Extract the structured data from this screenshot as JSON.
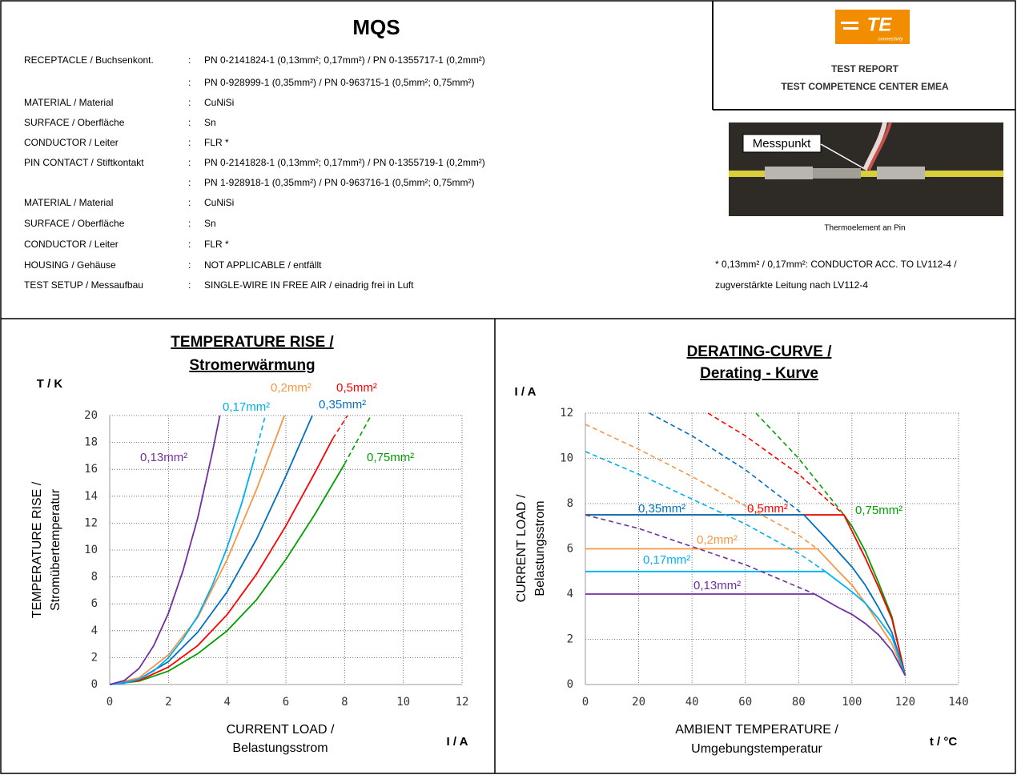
{
  "header": {
    "title": "MQS"
  },
  "report_box": {
    "logo_text": "TE",
    "logo_subtext": "connectivity",
    "line1": "TEST REPORT",
    "line2": "TEST COMPETENCE CENTER EMEA"
  },
  "photo": {
    "label": "Messpunkt",
    "caption": "Thermoelement an Pin"
  },
  "footnote": [
    "* 0,13mm² / 0,17mm²: CONDUCTOR ACC. TO LV112-4 /",
    "zugverstärkte Leitung nach LV112-4"
  ],
  "specifications": {
    "separator": ":",
    "rows": [
      {
        "label": "RECEPTACLE / Buchsenkont.",
        "values": [
          "PN 0-2141824-1 (0,13mm²; 0,17mm²) / PN 0-1355717-1 (0,2mm²)",
          "PN 0-928999-1 (0,35mm²) / PN 0-963715-1 (0,5mm²; 0,75mm²)"
        ]
      },
      {
        "label": "MATERIAL / Material",
        "values": [
          "CuNiSi"
        ]
      },
      {
        "label": "SURFACE / Oberfläche",
        "values": [
          "Sn"
        ]
      },
      {
        "label": "CONDUCTOR / Leiter",
        "values": [
          "FLR *"
        ]
      },
      {
        "label": "PIN CONTACT / Stiftkontakt",
        "values": [
          "PN 0-2141828-1 (0,13mm²; 0,17mm²) / PN 0-1355719-1 (0,2mm²)",
          "PN 1-928918-1 (0,35mm²) / PN 0-963716-1 (0,5mm²; 0,75mm²)"
        ]
      },
      {
        "label": "MATERIAL / Material",
        "values": [
          "CuNiSi"
        ]
      },
      {
        "label": "SURFACE / Oberfläche",
        "values": [
          "Sn"
        ]
      },
      {
        "label": "CONDUCTOR / Leiter",
        "values": [
          "FLR *"
        ]
      },
      {
        "label": "HOUSING / Gehäuse",
        "values": [
          "NOT APPLICABLE / entfällt"
        ]
      },
      {
        "label": "TEST SETUP / Messaufbau",
        "values": [
          "SINGLE-WIRE IN FREE AIR / einadrig frei in Luft"
        ]
      }
    ]
  },
  "chart_data": [
    {
      "type": "line",
      "title": [
        "TEMPERATURE RISE /",
        "Stromerwärmung"
      ],
      "y_unit": "T / K",
      "x_unit": "I / A",
      "y_label": [
        "TEMPERATURE RISE /",
        "Stromübertemperatur"
      ],
      "x_label": [
        "CURRENT LOAD /",
        "Belastungsstrom"
      ],
      "xlim": [
        0,
        12
      ],
      "ylim": [
        0,
        20
      ],
      "xticks": [
        0,
        2,
        4,
        6,
        8,
        10,
        12
      ],
      "yticks": [
        0,
        2,
        4,
        6,
        8,
        10,
        12,
        14,
        16,
        18,
        20
      ],
      "grid": true,
      "series": [
        {
          "name": "0,13mm²",
          "color": "#7030a0",
          "x": [
            0,
            0.5,
            1,
            1.5,
            2,
            2.5,
            3,
            3.5,
            3.75
          ],
          "values": [
            0,
            0.3,
            1.2,
            2.9,
            5.3,
            8.5,
            12.4,
            17.3,
            20
          ]
        },
        {
          "name": "0,17mm²",
          "color": "#00b0f0",
          "x": [
            0,
            0.5,
            1,
            1.5,
            2,
            2.5,
            3,
            3.5,
            4,
            4.5,
            4.9
          ],
          "values": [
            0,
            0.1,
            0.4,
            1.0,
            2.0,
            3.4,
            5.1,
            7.4,
            10.2,
            13.5,
            16.6
          ],
          "dash_x": [
            4.9,
            5.3
          ],
          "dash_values": [
            16.6,
            20
          ]
        },
        {
          "name": "0,2mm²",
          "color": "#f79646",
          "x": [
            0,
            1,
            2,
            3,
            4,
            5,
            5.95
          ],
          "values": [
            0,
            0.5,
            2.2,
            5.0,
            9.3,
            14.5,
            20
          ]
        },
        {
          "name": "0,35mm²",
          "color": "#0070c0",
          "x": [
            0,
            1,
            2,
            3,
            4,
            5,
            6,
            6.9
          ],
          "values": [
            0,
            0.4,
            1.7,
            3.9,
            6.9,
            10.8,
            15.5,
            20
          ]
        },
        {
          "name": "0,5mm²",
          "color": "#ff0000",
          "x": [
            0,
            1,
            2,
            3,
            4,
            5,
            6,
            7,
            7.6
          ],
          "values": [
            0,
            0.3,
            1.3,
            2.9,
            5.2,
            8.2,
            11.8,
            15.8,
            18.3
          ],
          "dash_x": [
            7.6,
            8.1
          ],
          "dash_values": [
            18.3,
            20
          ]
        },
        {
          "name": "0,75mm²",
          "color": "#00a000",
          "x": [
            0,
            1,
            2,
            3,
            4,
            5,
            6,
            7,
            8
          ],
          "values": [
            0,
            0.25,
            1.0,
            2.3,
            4.0,
            6.3,
            9.3,
            12.7,
            16.4
          ],
          "dash_x": [
            8,
            8.9
          ],
          "dash_values": [
            16.4,
            20
          ]
        }
      ]
    },
    {
      "type": "line",
      "title": [
        "DERATING-CURVE /",
        "Derating - Kurve"
      ],
      "y_unit": "I / A",
      "x_unit": "t / °C",
      "y_label": [
        "CURRENT LOAD /",
        "Belastungsstrom"
      ],
      "x_label": [
        "AMBIENT TEMPERATURE /",
        "Umgebungstemperatur"
      ],
      "xlim": [
        0,
        140
      ],
      "ylim": [
        0,
        12
      ],
      "xticks": [
        0,
        20,
        40,
        60,
        80,
        100,
        120,
        140
      ],
      "yticks": [
        0,
        2,
        4,
        6,
        8,
        10,
        12
      ],
      "grid": true,
      "series": [
        {
          "name": "0,13mm²",
          "color": "#7030a0",
          "x": [
            0,
            86,
            95,
            100,
            105,
            110,
            115,
            120
          ],
          "values": [
            4,
            4,
            3.4,
            3.1,
            2.7,
            2.2,
            1.5,
            0.4
          ],
          "dash_x": [
            0,
            20,
            40,
            60,
            80,
            86
          ],
          "dash_values": [
            7.5,
            6.9,
            6.1,
            5.3,
            4.3,
            4.0
          ]
        },
        {
          "name": "0,17mm²",
          "color": "#00b0f0",
          "x": [
            0,
            90,
            100,
            105,
            110,
            115,
            120
          ],
          "values": [
            5,
            5,
            4.1,
            3.6,
            2.9,
            2.1,
            0.4
          ],
          "dash_x": [
            0,
            20,
            40,
            60,
            80,
            90
          ],
          "dash_values": [
            10.3,
            9.3,
            8.2,
            7.1,
            5.8,
            5.0
          ]
        },
        {
          "name": "0,2mm²",
          "color": "#f79646",
          "x": [
            0,
            87,
            95,
            100,
            105,
            110,
            115,
            120
          ],
          "values": [
            6,
            6,
            5.0,
            4.4,
            3.6,
            2.7,
            1.8,
            0.4
          ],
          "dash_x": [
            0,
            20,
            40,
            60,
            80,
            87
          ],
          "dash_values": [
            11.5,
            10.4,
            9.2,
            7.9,
            6.6,
            6.0
          ]
        },
        {
          "name": "0,35mm²",
          "color": "#0070c0",
          "x": [
            0,
            82,
            90,
            100,
            105,
            110,
            115,
            120
          ],
          "values": [
            7.5,
            7.5,
            6.5,
            5.2,
            4.4,
            3.4,
            2.3,
            0.4
          ],
          "dash_x": [
            24,
            40,
            60,
            82
          ],
          "dash_values": [
            12,
            11.0,
            9.5,
            7.5
          ]
        },
        {
          "name": "0,5mm²",
          "color": "#ff0000",
          "x": [
            0,
            97,
            105,
            110,
            115,
            120
          ],
          "values": [
            7.5,
            7.5,
            5.6,
            4.3,
            2.9,
            0.4
          ],
          "dash_x": [
            46,
            60,
            80,
            97
          ],
          "dash_values": [
            12,
            11,
            9.3,
            7.5
          ]
        },
        {
          "name": "0,75mm²",
          "color": "#00a000",
          "x": [
            0,
            97,
            100,
            105,
            110,
            115,
            120
          ],
          "values": [
            7.5,
            7.5,
            7.0,
            5.9,
            4.5,
            3.0,
            0.4
          ],
          "dash_x": [
            64,
            80,
            97
          ],
          "dash_values": [
            12,
            10.0,
            7.5
          ]
        }
      ]
    }
  ]
}
